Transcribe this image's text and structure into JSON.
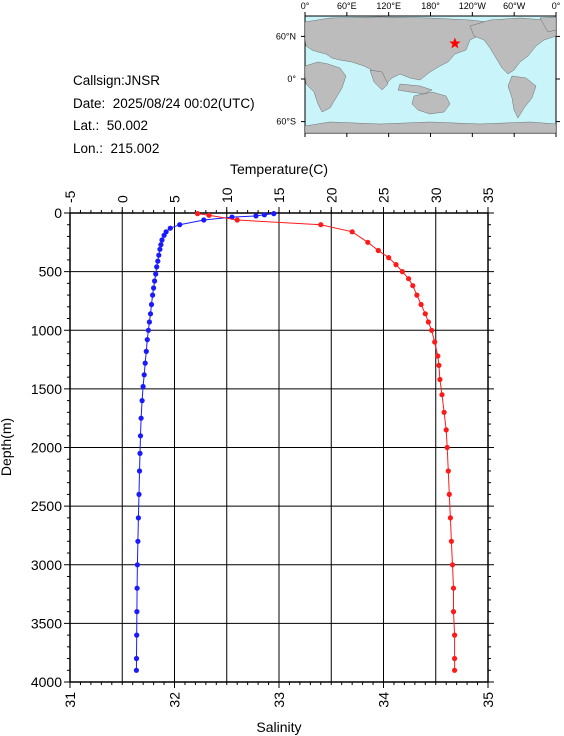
{
  "station": {
    "callsign": "Callsign:JNSR",
    "date": "Date:  2025/08/24 00:02(UTC)",
    "lat": "Lat.:  50.002",
    "lon": "Lon.:  215.002"
  },
  "map": {
    "lon_labels": [
      "0°",
      "60°E",
      "120°E",
      "180°",
      "120°W",
      "60°W",
      "0°"
    ],
    "lat_labels": [
      "60°N",
      "0°",
      "60°S"
    ],
    "ocean_color": "#c8f4fa",
    "land_color": "#bcbcbc",
    "marker": {
      "name": "star-marker",
      "lon": 215.002,
      "lat": 50.002,
      "color": "#ff0000"
    }
  },
  "chart_data": {
    "type": "line",
    "top_axis": {
      "label": "Temperature(C)",
      "range": [
        -5,
        35
      ],
      "ticks": [
        "-5",
        "0",
        "5",
        "10",
        "15",
        "20",
        "25",
        "30",
        "35"
      ]
    },
    "bottom_axis": {
      "label": "Salinity",
      "range": [
        31,
        35
      ],
      "ticks": [
        "31",
        "32",
        "33",
        "34",
        "35"
      ]
    },
    "y_axis": {
      "label": "Depth(m)",
      "range": [
        0,
        4000
      ],
      "inverted": true,
      "ticks": [
        "0",
        "500",
        "1000",
        "1500",
        "2000",
        "2500",
        "3000",
        "3500",
        "4000"
      ]
    },
    "grid": true,
    "series": [
      {
        "axis": "top",
        "color": "#1a1aff",
        "points": [
          [
            14.5,
            5
          ],
          [
            13.6,
            15
          ],
          [
            12.8,
            25
          ],
          [
            10.5,
            35
          ],
          [
            7.8,
            60
          ],
          [
            5.5,
            100
          ],
          [
            4.6,
            130
          ],
          [
            4.2,
            160
          ],
          [
            4.0,
            190
          ],
          [
            3.8,
            230
          ],
          [
            3.7,
            270
          ],
          [
            3.6,
            310
          ],
          [
            3.5,
            360
          ],
          [
            3.4,
            410
          ],
          [
            3.3,
            460
          ],
          [
            3.2,
            520
          ],
          [
            3.1,
            580
          ],
          [
            3.0,
            640
          ],
          [
            2.9,
            700
          ],
          [
            2.8,
            780
          ],
          [
            2.7,
            860
          ],
          [
            2.6,
            930
          ],
          [
            2.5,
            1000
          ],
          [
            2.4,
            1080
          ],
          [
            2.3,
            1180
          ],
          [
            2.2,
            1280
          ],
          [
            2.1,
            1380
          ],
          [
            2.0,
            1480
          ],
          [
            1.9,
            1600
          ],
          [
            1.8,
            1750
          ],
          [
            1.75,
            1900
          ],
          [
            1.7,
            2050
          ],
          [
            1.65,
            2200
          ],
          [
            1.6,
            2400
          ],
          [
            1.55,
            2600
          ],
          [
            1.5,
            2800
          ],
          [
            1.45,
            3000
          ],
          [
            1.42,
            3200
          ],
          [
            1.4,
            3400
          ],
          [
            1.38,
            3600
          ],
          [
            1.36,
            3800
          ],
          [
            1.35,
            3900
          ]
        ]
      },
      {
        "axis": "bottom",
        "color": "#ff1a1a",
        "points": [
          [
            32.22,
            5
          ],
          [
            32.33,
            20
          ],
          [
            32.6,
            60
          ],
          [
            33.4,
            100
          ],
          [
            33.7,
            160
          ],
          [
            33.85,
            250
          ],
          [
            33.95,
            320
          ],
          [
            34.05,
            380
          ],
          [
            34.12,
            440
          ],
          [
            34.18,
            500
          ],
          [
            34.24,
            560
          ],
          [
            34.28,
            620
          ],
          [
            34.32,
            700
          ],
          [
            34.36,
            780
          ],
          [
            34.4,
            860
          ],
          [
            34.43,
            930
          ],
          [
            34.46,
            1000
          ],
          [
            34.49,
            1100
          ],
          [
            34.52,
            1220
          ],
          [
            34.53,
            1300
          ],
          [
            34.54,
            1420
          ],
          [
            34.56,
            1550
          ],
          [
            34.58,
            1700
          ],
          [
            34.6,
            1850
          ],
          [
            34.61,
            2000
          ],
          [
            34.62,
            2200
          ],
          [
            34.63,
            2400
          ],
          [
            34.64,
            2600
          ],
          [
            34.65,
            2800
          ],
          [
            34.66,
            3000
          ],
          [
            34.67,
            3200
          ],
          [
            34.67,
            3400
          ],
          [
            34.68,
            3600
          ],
          [
            34.68,
            3800
          ],
          [
            34.68,
            3900
          ]
        ]
      }
    ]
  }
}
